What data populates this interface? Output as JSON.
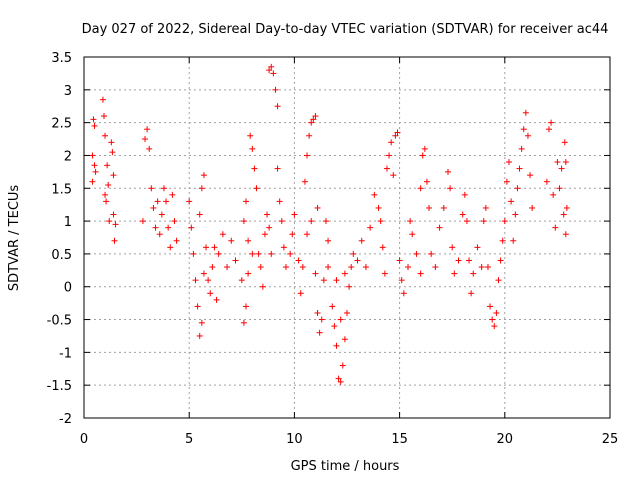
{
  "chart_data": {
    "type": "scatter",
    "title": "Day 027 of 2022, Sidereal Day-to-day VTEC variation (SDTVAR) for receiver ac44",
    "xlabel": "GPS time / hours",
    "ylabel": "SDTVAR / TECUs",
    "xlim": [
      0,
      25
    ],
    "ylim": [
      -2,
      3.5
    ],
    "xticks": [
      0,
      5,
      10,
      15,
      20,
      25
    ],
    "xtick_labels": [
      "0",
      "5",
      "10",
      "15",
      "20",
      "25"
    ],
    "yticks": [
      -2,
      -1.5,
      -1,
      -0.5,
      0,
      0.5,
      1,
      1.5,
      2,
      2.5,
      3,
      3.5
    ],
    "ytick_labels": [
      "-2",
      "-1.5",
      "-1",
      "-0.5",
      "0",
      "0.5",
      "1",
      "1.5",
      "2",
      "2.5",
      "3",
      "3.5"
    ],
    "grid": true,
    "marker": "+",
    "series": [
      {
        "name": "SDTVAR",
        "color": "#ff0000",
        "points": [
          [
            0.4,
            1.6
          ],
          [
            0.4,
            2.0
          ],
          [
            0.45,
            2.55
          ],
          [
            0.5,
            2.45
          ],
          [
            0.5,
            1.85
          ],
          [
            0.55,
            1.75
          ],
          [
            0.9,
            2.85
          ],
          [
            0.95,
            2.6
          ],
          [
            1.0,
            2.3
          ],
          [
            1.0,
            1.4
          ],
          [
            1.05,
            1.3
          ],
          [
            1.1,
            1.85
          ],
          [
            1.15,
            1.55
          ],
          [
            1.2,
            1.0
          ],
          [
            1.3,
            2.2
          ],
          [
            1.35,
            2.05
          ],
          [
            1.4,
            1.7
          ],
          [
            1.4,
            1.1
          ],
          [
            1.45,
            0.7
          ],
          [
            1.5,
            0.95
          ],
          [
            2.8,
            1.0
          ],
          [
            2.9,
            2.25
          ],
          [
            3.0,
            2.4
          ],
          [
            3.1,
            2.1
          ],
          [
            3.2,
            1.5
          ],
          [
            3.3,
            1.2
          ],
          [
            3.4,
            0.9
          ],
          [
            3.5,
            1.3
          ],
          [
            3.6,
            0.8
          ],
          [
            3.7,
            1.1
          ],
          [
            3.8,
            1.5
          ],
          [
            3.9,
            1.3
          ],
          [
            4.0,
            0.9
          ],
          [
            4.1,
            0.6
          ],
          [
            4.2,
            1.4
          ],
          [
            4.3,
            1.0
          ],
          [
            4.4,
            0.7
          ],
          [
            5.0,
            1.3
          ],
          [
            5.1,
            0.9
          ],
          [
            5.2,
            0.5
          ],
          [
            5.3,
            0.1
          ],
          [
            5.4,
            -0.3
          ],
          [
            5.5,
            -0.75
          ],
          [
            5.6,
            -0.55
          ],
          [
            5.7,
            0.2
          ],
          [
            5.5,
            1.1
          ],
          [
            5.6,
            1.5
          ],
          [
            5.7,
            1.7
          ],
          [
            5.8,
            0.6
          ],
          [
            5.9,
            0.1
          ],
          [
            6.0,
            -0.1
          ],
          [
            6.1,
            0.3
          ],
          [
            6.2,
            0.6
          ],
          [
            6.3,
            -0.2
          ],
          [
            6.4,
            0.5
          ],
          [
            6.6,
            0.8
          ],
          [
            6.8,
            0.3
          ],
          [
            7.0,
            0.7
          ],
          [
            7.2,
            0.4
          ],
          [
            7.5,
            0.1
          ],
          [
            7.6,
            -0.55
          ],
          [
            7.7,
            -0.3
          ],
          [
            7.8,
            0.2
          ],
          [
            8.0,
            0.5
          ],
          [
            7.6,
            1.0
          ],
          [
            7.7,
            1.3
          ],
          [
            7.8,
            0.7
          ],
          [
            7.9,
            2.3
          ],
          [
            8.0,
            2.1
          ],
          [
            8.1,
            1.8
          ],
          [
            8.2,
            1.5
          ],
          [
            8.3,
            0.5
          ],
          [
            8.4,
            0.3
          ],
          [
            8.5,
            0.0
          ],
          [
            8.6,
            0.8
          ],
          [
            8.7,
            1.1
          ],
          [
            8.8,
            0.9
          ],
          [
            8.9,
            0.5
          ],
          [
            8.8,
            3.3
          ],
          [
            8.9,
            3.35
          ],
          [
            9.0,
            3.25
          ],
          [
            9.1,
            3.0
          ],
          [
            9.2,
            2.75
          ],
          [
            9.2,
            1.8
          ],
          [
            9.3,
            1.3
          ],
          [
            9.4,
            1.0
          ],
          [
            9.5,
            0.6
          ],
          [
            9.6,
            0.3
          ],
          [
            9.8,
            0.5
          ],
          [
            9.9,
            0.8
          ],
          [
            10.0,
            1.1
          ],
          [
            10.2,
            0.4
          ],
          [
            10.3,
            -0.1
          ],
          [
            10.4,
            0.3
          ],
          [
            10.6,
            0.8
          ],
          [
            10.8,
            1.0
          ],
          [
            10.5,
            1.6
          ],
          [
            10.6,
            2.0
          ],
          [
            10.7,
            2.3
          ],
          [
            10.8,
            2.5
          ],
          [
            10.9,
            2.55
          ],
          [
            11.0,
            2.6
          ],
          [
            11.1,
            1.2
          ],
          [
            11.0,
            0.2
          ],
          [
            11.1,
            -0.4
          ],
          [
            11.2,
            -0.7
          ],
          [
            11.3,
            -0.5
          ],
          [
            11.4,
            0.1
          ],
          [
            11.6,
            0.3
          ],
          [
            11.5,
            1.0
          ],
          [
            11.6,
            0.7
          ],
          [
            11.8,
            -0.3
          ],
          [
            11.9,
            -0.6
          ],
          [
            12.0,
            -0.9
          ],
          [
            12.1,
            -1.4
          ],
          [
            12.2,
            -1.45
          ],
          [
            12.3,
            -1.2
          ],
          [
            12.4,
            -0.8
          ],
          [
            12.5,
            -0.4
          ],
          [
            12.6,
            0.0
          ],
          [
            12.7,
            0.3
          ],
          [
            12.0,
            0.1
          ],
          [
            12.2,
            -0.5
          ],
          [
            12.4,
            0.2
          ],
          [
            12.8,
            0.5
          ],
          [
            13.0,
            0.4
          ],
          [
            13.2,
            0.7
          ],
          [
            13.4,
            0.3
          ],
          [
            13.6,
            0.9
          ],
          [
            13.8,
            1.4
          ],
          [
            14.0,
            1.2
          ],
          [
            14.1,
            1.0
          ],
          [
            14.2,
            0.6
          ],
          [
            14.3,
            0.2
          ],
          [
            14.4,
            1.8
          ],
          [
            14.5,
            2.0
          ],
          [
            14.6,
            2.2
          ],
          [
            14.7,
            1.7
          ],
          [
            14.8,
            2.3
          ],
          [
            14.9,
            2.35
          ],
          [
            15.0,
            0.4
          ],
          [
            15.1,
            0.1
          ],
          [
            15.2,
            -0.1
          ],
          [
            15.4,
            0.3
          ],
          [
            15.5,
            1.0
          ],
          [
            15.6,
            0.8
          ],
          [
            15.8,
            0.5
          ],
          [
            16.0,
            0.2
          ],
          [
            16.0,
            1.5
          ],
          [
            16.1,
            2.0
          ],
          [
            16.2,
            2.1
          ],
          [
            16.3,
            1.6
          ],
          [
            16.4,
            1.2
          ],
          [
            16.5,
            0.5
          ],
          [
            16.7,
            0.3
          ],
          [
            16.9,
            0.9
          ],
          [
            17.1,
            1.2
          ],
          [
            17.3,
            1.75
          ],
          [
            17.4,
            1.5
          ],
          [
            17.5,
            0.6
          ],
          [
            17.6,
            0.2
          ],
          [
            17.8,
            0.4
          ],
          [
            18.0,
            1.1
          ],
          [
            18.1,
            1.4
          ],
          [
            18.2,
            1.0
          ],
          [
            18.3,
            0.4
          ],
          [
            18.4,
            -0.1
          ],
          [
            18.5,
            0.2
          ],
          [
            18.7,
            0.6
          ],
          [
            18.9,
            0.3
          ],
          [
            19.0,
            1.0
          ],
          [
            19.1,
            1.2
          ],
          [
            19.2,
            0.3
          ],
          [
            19.3,
            -0.3
          ],
          [
            19.4,
            -0.5
          ],
          [
            19.5,
            -0.6
          ],
          [
            19.6,
            -0.4
          ],
          [
            19.7,
            0.1
          ],
          [
            19.8,
            0.4
          ],
          [
            19.9,
            0.7
          ],
          [
            20.0,
            1.0
          ],
          [
            20.1,
            1.6
          ],
          [
            20.2,
            1.9
          ],
          [
            20.3,
            1.3
          ],
          [
            20.4,
            0.7
          ],
          [
            20.5,
            1.1
          ],
          [
            20.6,
            1.5
          ],
          [
            20.7,
            1.8
          ],
          [
            20.8,
            2.1
          ],
          [
            20.9,
            2.4
          ],
          [
            21.0,
            2.65
          ],
          [
            21.1,
            2.3
          ],
          [
            21.2,
            1.7
          ],
          [
            21.3,
            1.2
          ],
          [
            22.0,
            1.6
          ],
          [
            22.1,
            2.4
          ],
          [
            22.2,
            2.5
          ],
          [
            22.3,
            1.4
          ],
          [
            22.4,
            0.9
          ],
          [
            22.5,
            1.9
          ],
          [
            22.6,
            1.5
          ],
          [
            22.7,
            1.8
          ],
          [
            22.8,
            1.1
          ],
          [
            22.9,
            0.8
          ],
          [
            22.85,
            2.2
          ],
          [
            22.9,
            1.9
          ],
          [
            22.95,
            1.2
          ]
        ]
      }
    ]
  }
}
